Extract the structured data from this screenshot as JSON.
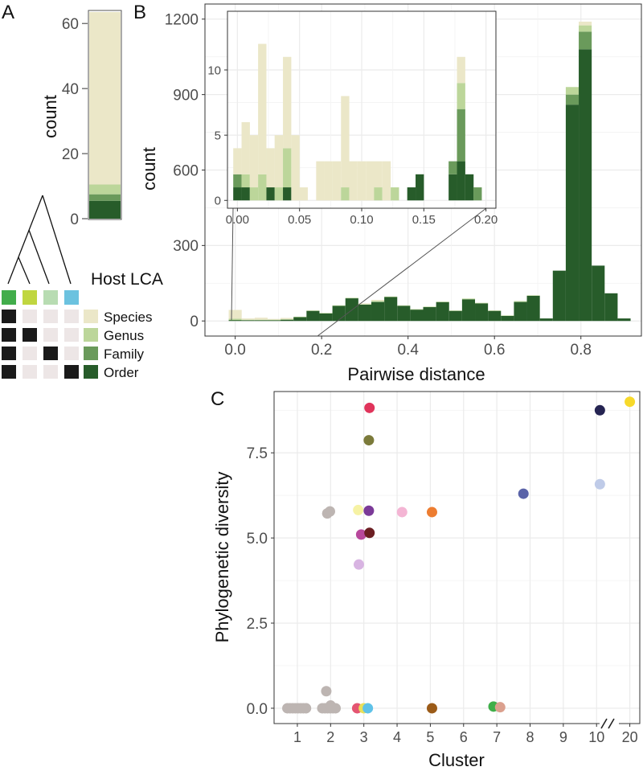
{
  "colors": {
    "species": "#ebe7c8",
    "genus": "#bcd69a",
    "family": "#6a9a5b",
    "order": "#275c2a",
    "grid": "#ebebeb",
    "panel_border": "#333333",
    "matrix_dark": "#1a1a1a",
    "matrix_light": "#ede6e6",
    "lca_green": "#42ad4b",
    "lca_lime": "#c0d640",
    "lca_pale": "#b8dcb2",
    "lca_blue": "#6cc2df"
  },
  "chart_data": [
    {
      "panel": "A",
      "type": "bar",
      "stacked": true,
      "ylabel": "count",
      "ylim": [
        0,
        64
      ],
      "yticks": [
        0,
        20,
        40,
        60
      ],
      "segments": [
        {
          "name": "Order",
          "value": 5.5
        },
        {
          "name": "Family",
          "value": 2
        },
        {
          "name": "Genus",
          "value": 3
        },
        {
          "name": "Species",
          "value": 53
        }
      ],
      "legend_title": "Host LCA",
      "legend": [
        "Species",
        "Genus",
        "Family",
        "Order"
      ],
      "matrix": [
        [
          1,
          0,
          0,
          0
        ],
        [
          1,
          1,
          0,
          0
        ],
        [
          1,
          0,
          1,
          0
        ],
        [
          1,
          0,
          0,
          1
        ]
      ]
    },
    {
      "panel": "B",
      "type": "bar",
      "stacked": true,
      "xlabel": "Pairwise distance",
      "ylabel": "count",
      "xlim": [
        -0.07,
        0.94
      ],
      "ylim": [
        -60,
        1260
      ],
      "xticks": [
        "0.0",
        "0.2",
        "0.4",
        "0.6",
        "0.8"
      ],
      "yticks": [
        "0",
        "300",
        "600",
        "900",
        "1200"
      ],
      "bin_width": 0.03,
      "x": [
        0.0,
        0.03,
        0.06,
        0.09,
        0.12,
        0.15,
        0.18,
        0.21,
        0.24,
        0.27,
        0.3,
        0.33,
        0.36,
        0.39,
        0.42,
        0.45,
        0.48,
        0.51,
        0.54,
        0.57,
        0.6,
        0.63,
        0.66,
        0.69,
        0.72,
        0.75,
        0.78,
        0.81,
        0.84,
        0.87,
        0.9
      ],
      "series": [
        {
          "name": "Order",
          "values": [
            3,
            3,
            3,
            3,
            5,
            15,
            40,
            30,
            60,
            90,
            65,
            75,
            95,
            60,
            45,
            55,
            75,
            40,
            85,
            70,
            40,
            20,
            75,
            100,
            10,
            200,
            860,
            1080,
            220,
            110,
            10
          ]
        },
        {
          "name": "Family",
          "values": [
            1,
            0,
            0,
            0,
            0,
            0,
            0,
            0,
            0,
            0,
            0,
            2,
            0,
            0,
            0,
            0,
            0,
            0,
            2,
            0,
            0,
            0,
            2,
            0,
            0,
            0,
            40,
            70,
            0,
            0,
            0
          ]
        },
        {
          "name": "Genus",
          "values": [
            5,
            2,
            2,
            2,
            2,
            2,
            2,
            2,
            2,
            2,
            2,
            2,
            2,
            2,
            2,
            2,
            2,
            2,
            2,
            2,
            2,
            2,
            2,
            2,
            0,
            0,
            30,
            25,
            0,
            0,
            0
          ]
        },
        {
          "name": "Species",
          "values": [
            35,
            5,
            8,
            3,
            5,
            0,
            0,
            0,
            0,
            0,
            3,
            5,
            0,
            0,
            0,
            0,
            0,
            0,
            0,
            0,
            0,
            0,
            0,
            0,
            0,
            0,
            0,
            15,
            0,
            0,
            0
          ]
        }
      ],
      "inset": {
        "xlim": [
          -0.008,
          0.208
        ],
        "ylim": [
          -0.6,
          14.5
        ],
        "xticks": [
          "0.00",
          "0.05",
          "0.10",
          "0.15",
          "0.20"
        ],
        "yticks": [
          "0",
          "5",
          "10"
        ],
        "bin_width": 0.0067,
        "x": [
          0.0,
          0.0067,
          0.0133,
          0.02,
          0.0267,
          0.0333,
          0.04,
          0.0467,
          0.0533,
          0.06,
          0.0667,
          0.0733,
          0.08,
          0.0867,
          0.0933,
          0.1,
          0.1067,
          0.1133,
          0.12,
          0.1267,
          0.1333,
          0.14,
          0.1467,
          0.1533,
          0.16,
          0.1667,
          0.1733,
          0.18,
          0.1867,
          0.1933
        ],
        "series": [
          {
            "name": "Order",
            "values": [
              1,
              1,
              0,
              0,
              1,
              0,
              1,
              0,
              0,
              0,
              0,
              0,
              0,
              0,
              0,
              0,
              0,
              0,
              0,
              0,
              0,
              1,
              2,
              0,
              0,
              0,
              2,
              3,
              2,
              0
            ]
          },
          {
            "name": "Family",
            "values": [
              1,
              0,
              0,
              0,
              0,
              0,
              0,
              0,
              0,
              0,
              0,
              0,
              0,
              0,
              0,
              0,
              0,
              0,
              0,
              0,
              0,
              0,
              0,
              0,
              0,
              0,
              1,
              4,
              0,
              1
            ]
          },
          {
            "name": "Genus",
            "values": [
              0,
              1,
              1,
              2,
              0,
              1,
              3,
              0,
              0,
              0,
              0,
              0,
              0,
              1,
              0,
              0,
              0,
              1,
              0,
              1,
              0,
              0,
              0,
              0,
              0,
              0,
              0,
              2,
              0,
              0
            ]
          },
          {
            "name": "Species",
            "values": [
              2,
              4,
              4,
              10,
              3,
              4,
              7,
              5,
              1,
              0,
              3,
              3,
              3,
              7,
              3,
              3,
              3,
              2,
              3,
              0,
              0,
              0,
              0,
              0,
              0,
              0,
              0,
              2,
              0,
              0
            ]
          }
        ]
      }
    },
    {
      "panel": "C",
      "type": "scatter",
      "xlabel": "Cluster",
      "ylabel": "Phylogenetic diversity",
      "xlim": [
        0.3,
        11.3
      ],
      "ylim": [
        -0.45,
        9.3
      ],
      "xtick_positions": [
        1,
        2,
        3,
        4,
        5,
        6,
        7,
        8,
        9,
        10,
        11
      ],
      "xticks": [
        "1",
        "2",
        "3",
        "4",
        "5",
        "6",
        "7",
        "8",
        "9",
        "10",
        "20"
      ],
      "yticks": [
        "0.0",
        "2.5",
        "5.0",
        "7.5"
      ],
      "axis_break_mark": "//",
      "points": [
        {
          "x": 0.7,
          "y": 0,
          "color": "#bdb5b2"
        },
        {
          "x": 0.78,
          "y": 0,
          "color": "#bdb5b2"
        },
        {
          "x": 0.86,
          "y": 0,
          "color": "#bdb5b2"
        },
        {
          "x": 0.94,
          "y": 0,
          "color": "#bdb5b2"
        },
        {
          "x": 1.02,
          "y": 0,
          "color": "#bdb5b2"
        },
        {
          "x": 1.1,
          "y": 0,
          "color": "#bdb5b2"
        },
        {
          "x": 1.18,
          "y": 0,
          "color": "#bdb5b2"
        },
        {
          "x": 1.26,
          "y": 0,
          "color": "#bdb5b2"
        },
        {
          "x": 1.75,
          "y": 0,
          "color": "#bdb5b2"
        },
        {
          "x": 1.83,
          "y": 0,
          "color": "#bdb5b2"
        },
        {
          "x": 1.91,
          "y": 0,
          "color": "#bdb5b2"
        },
        {
          "x": 1.99,
          "y": 0,
          "color": "#bdb5b2"
        },
        {
          "x": 2.07,
          "y": 0,
          "color": "#bdb5b2"
        },
        {
          "x": 2.15,
          "y": 0,
          "color": "#bdb5b2"
        },
        {
          "x": 2.0,
          "y": 0.08,
          "color": "#bdb5b2"
        },
        {
          "x": 1.87,
          "y": 0.5,
          "color": "#bdb5b2"
        },
        {
          "x": 1.9,
          "y": 5.72,
          "color": "#bdb5b2"
        },
        {
          "x": 1.98,
          "y": 5.78,
          "color": "#bdb5b2"
        },
        {
          "x": 2.8,
          "y": 0,
          "color": "#e45572"
        },
        {
          "x": 3.0,
          "y": 0,
          "color": "#e9e05a"
        },
        {
          "x": 3.12,
          "y": 0,
          "color": "#5fc2e8"
        },
        {
          "x": 3.17,
          "y": 8.82,
          "color": "#e0345b"
        },
        {
          "x": 3.15,
          "y": 7.87,
          "color": "#7b7a3a"
        },
        {
          "x": 2.83,
          "y": 5.82,
          "color": "#f6f2a4"
        },
        {
          "x": 3.15,
          "y": 5.8,
          "color": "#7b3a98"
        },
        {
          "x": 2.92,
          "y": 5.1,
          "color": "#b8489c"
        },
        {
          "x": 3.17,
          "y": 5.15,
          "color": "#6b1e22"
        },
        {
          "x": 2.85,
          "y": 4.22,
          "color": "#d8b4e2"
        },
        {
          "x": 4.15,
          "y": 5.76,
          "color": "#f4b5d4"
        },
        {
          "x": 5.05,
          "y": 5.76,
          "color": "#ed7d31"
        },
        {
          "x": 5.05,
          "y": 0,
          "color": "#9b5b18"
        },
        {
          "x": 6.9,
          "y": 0.05,
          "color": "#3fae49"
        },
        {
          "x": 7.1,
          "y": 0.03,
          "color": "#dba08e"
        },
        {
          "x": 7.8,
          "y": 6.3,
          "color": "#5a63a8"
        },
        {
          "x": 10.1,
          "y": 8.75,
          "color": "#252452"
        },
        {
          "x": 10.1,
          "y": 6.58,
          "color": "#bfcbe8"
        },
        {
          "x": 11.0,
          "y": 9.0,
          "color": "#f7d92a"
        }
      ]
    }
  ],
  "panel_labels": [
    "A",
    "B",
    "C"
  ]
}
